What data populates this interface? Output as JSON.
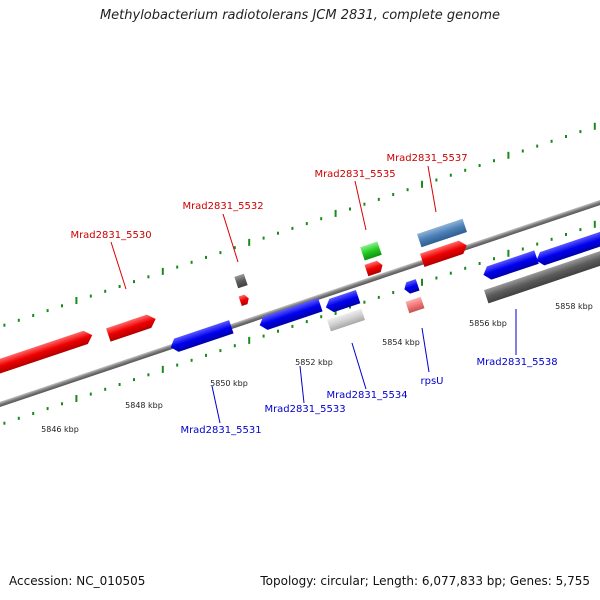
{
  "title": "Methylobacterium radiotolerans JCM 2831, complete genome",
  "footer": {
    "accession": "Accession: NC_010505",
    "summary": "Topology: circular; Length: 6,077,833 bp; Genes: 5,755"
  },
  "colors": {
    "forward_gene": "#ff0000",
    "reverse_gene": "#0000ff",
    "forward_label": "#cc0000",
    "reverse_label": "#0000cc",
    "backbone": "#7a7a7a",
    "tick": "#1a8a1a"
  },
  "scale_labels": [
    "5846 kbp",
    "5848 kbp",
    "5850 kbp",
    "5852 kbp",
    "5854 kbp",
    "5856 kbp",
    "5858 kbp"
  ],
  "gene_labels_top": [
    "Mrad2831_5530",
    "Mrad2831_5532",
    "Mrad2831_5535",
    "Mrad2831_5537"
  ],
  "gene_labels_bottom": [
    "Mrad2831_5531",
    "Mrad2831_5533",
    "Mrad2831_5534",
    "rpsU",
    "Mrad2831_5538"
  ]
}
